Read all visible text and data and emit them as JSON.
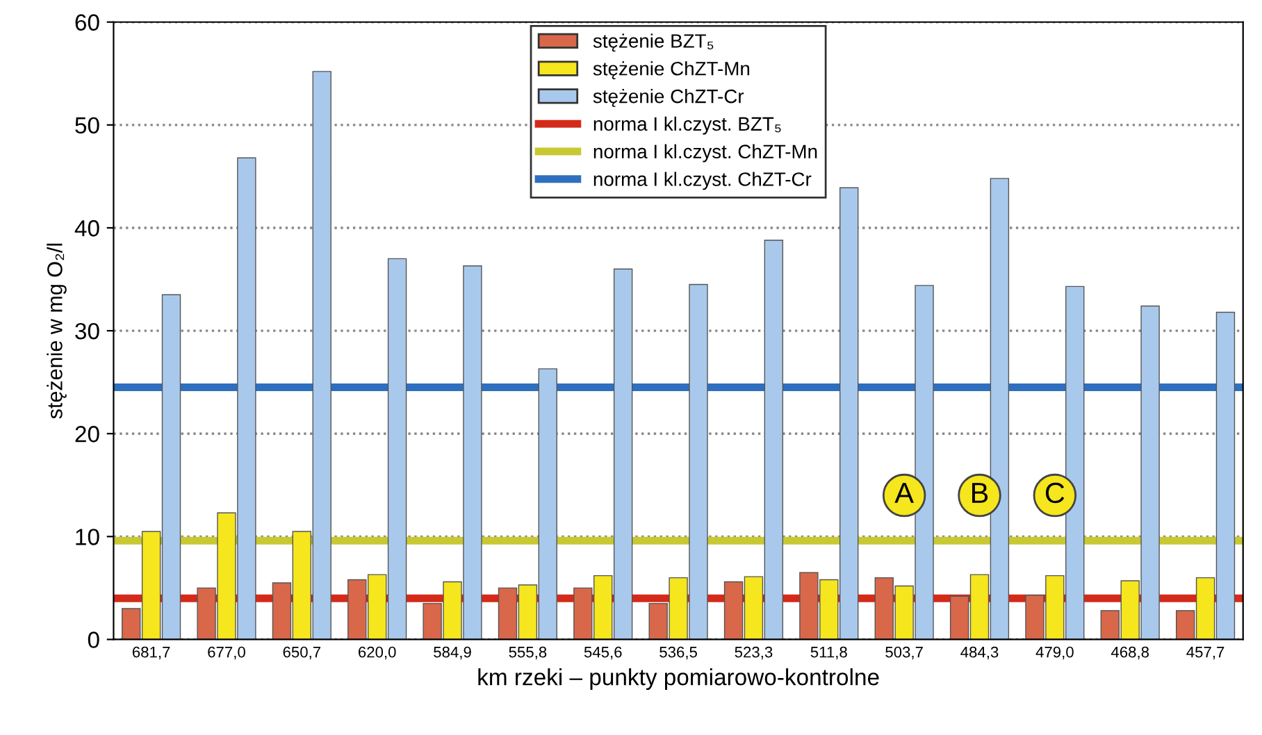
{
  "chart_data": {
    "type": "bar",
    "xlabel": "km rzeki – punkty pomiarowo-kontrolne",
    "ylabel": "stężenie w mg O₂/l",
    "categories": [
      "681,7",
      "677,0",
      "650,7",
      "620,0",
      "584,9",
      "555,8",
      "545,6",
      "536,5",
      "523,3",
      "511,8",
      "503,7",
      "484,3",
      "479,0",
      "468,8",
      "457,7"
    ],
    "series": [
      {
        "name": "stężenie BZT₅",
        "color": "#d9674a",
        "values": [
          3.0,
          5.0,
          5.5,
          5.8,
          3.5,
          5.0,
          5.0,
          3.5,
          5.6,
          6.5,
          6.0,
          4.2,
          4.3,
          2.8,
          2.8
        ]
      },
      {
        "name": "stężenie ChZT-Mn",
        "color": "#f5e61e",
        "values": [
          10.5,
          12.3,
          10.5,
          6.3,
          5.6,
          5.3,
          6.2,
          6.0,
          6.1,
          5.8,
          5.2,
          6.3,
          6.2,
          5.7,
          6.0
        ]
      },
      {
        "name": "stężenie ChZT-Cr",
        "color": "#a9c9ec",
        "values": [
          33.5,
          46.8,
          55.2,
          37.0,
          36.3,
          26.3,
          36.0,
          34.5,
          38.8,
          43.9,
          34.4,
          44.8,
          34.3,
          32.4,
          31.8
        ]
      }
    ],
    "ref_lines": [
      {
        "axis": "y",
        "value": 4.0,
        "label": "norma I kl.czyst. BZT₅",
        "color": "#d42a1a"
      },
      {
        "axis": "y",
        "value": 9.6,
        "label": "norma I kl.czyst. ChZT-Mn",
        "color": "#c8c832"
      },
      {
        "axis": "y",
        "value": 24.5,
        "label": "norma I kl.czyst. ChZT-Cr",
        "color": "#2f6fbf"
      }
    ],
    "annotations": [
      {
        "text": "A",
        "x": "503,7",
        "y": 14
      },
      {
        "text": "B",
        "x": "484,3",
        "y": 14
      },
      {
        "text": "C",
        "x": "479,0",
        "y": 14
      }
    ],
    "ylim": [
      0,
      60
    ],
    "yticks": [
      0,
      10,
      20,
      30,
      40,
      50,
      60
    ],
    "grid": "y",
    "legend": "top"
  }
}
